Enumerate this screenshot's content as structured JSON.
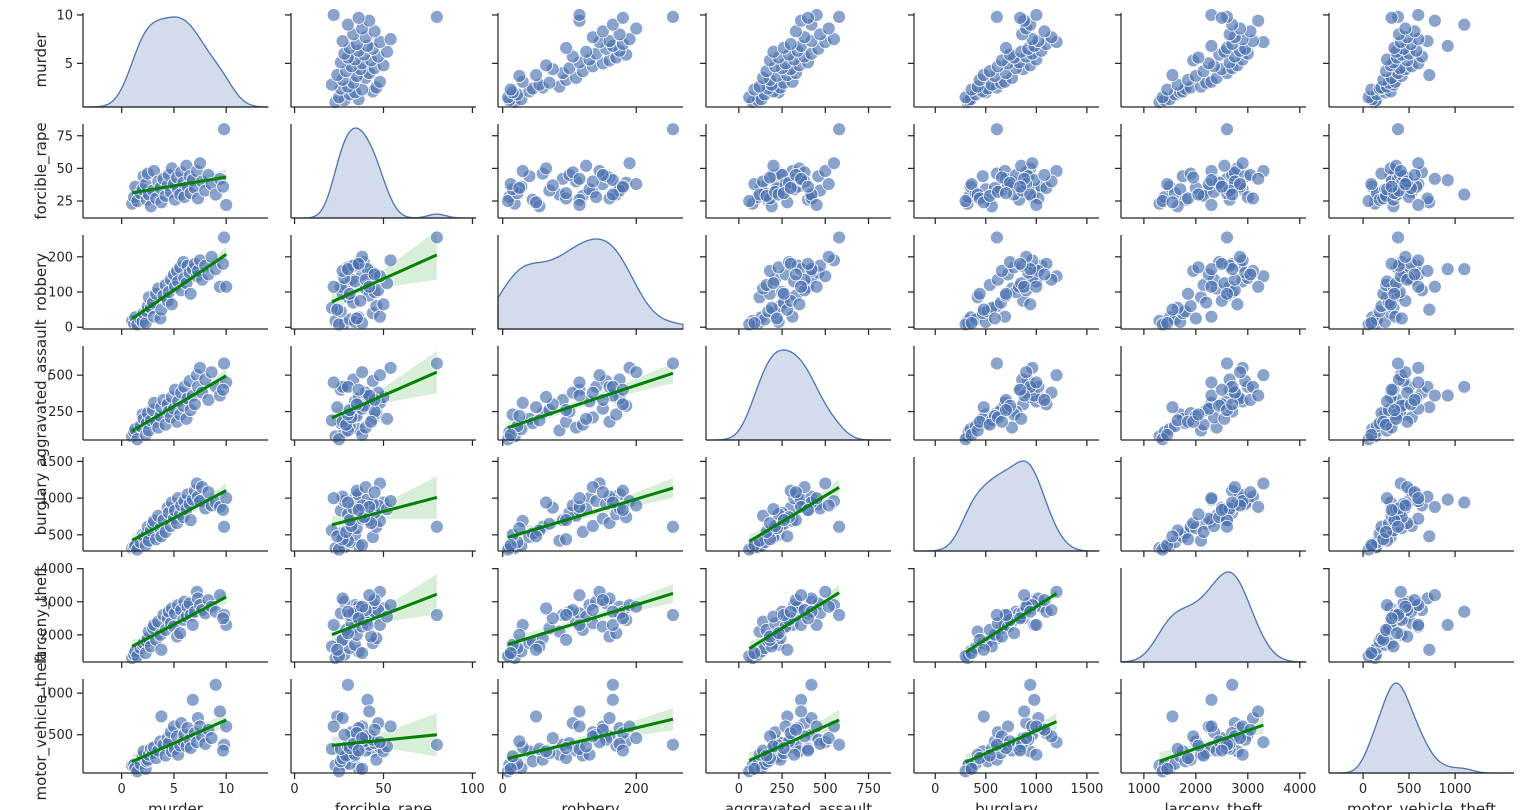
{
  "chart_data": {
    "type": "pairplot",
    "title": "",
    "variables": [
      "murder",
      "forcible_rape",
      "robbery",
      "aggravated_assault",
      "burglary",
      "larceny_theft",
      "motor_vehicle_theft"
    ],
    "axis_ranges": {
      "murder": [
        -3.7,
        14.0
      ],
      "forcible_rape": [
        -2,
        102
      ],
      "robbery": [
        -7,
        270
      ],
      "aggravated_assault": [
        -190,
        880
      ],
      "burglary": [
        -210,
        1620
      ],
      "larceny_theft": [
        560,
        4120
      ],
      "motor_vehicle_theft": [
        -370,
        1640
      ]
    },
    "x_ticks": {
      "murder": [
        0,
        5,
        10
      ],
      "forcible_rape": [
        0,
        50,
        100
      ],
      "robbery": [
        0,
        200
      ],
      "aggravated_assault": [
        0,
        250,
        500,
        750
      ],
      "burglary": [
        0,
        500,
        1000,
        1500
      ],
      "larceny_theft": [
        1000,
        2000,
        3000,
        4000
      ],
      "motor_vehicle_theft": [
        0,
        500,
        1000
      ]
    },
    "y_ticks": {
      "murder": [
        5,
        10
      ],
      "forcible_rape": [
        25,
        50,
        75
      ],
      "robbery": [
        0,
        100,
        200
      ],
      "aggravated_assault": [
        250,
        500
      ],
      "burglary": [
        500,
        1000,
        1500
      ],
      "larceny_theft": [
        2000,
        3000,
        4000
      ],
      "motor_vehicle_theft": [
        500,
        1000
      ]
    },
    "y_view_ranges": {
      "murder": [
        0.5,
        10.2
      ],
      "forcible_rape": [
        12,
        84
      ],
      "robbery": [
        -5,
        262
      ],
      "aggravated_assault": [
        55,
        700
      ],
      "burglary": [
        280,
        1560
      ],
      "larceny_theft": [
        1180,
        4020
      ],
      "motor_vehicle_theft": [
        40,
        1170
      ]
    },
    "diagonal": "kde",
    "lower": "scatter with linear regression line and 95% confidence band (green)",
    "upper": "scatter",
    "regression_line_color": "#008000",
    "point_color": "#4c72b0",
    "samples": [
      [
        1.0,
        23,
        18,
        80,
        320,
        1300,
        130
      ],
      [
        1.2,
        28,
        10,
        110,
        330,
        1400,
        140
      ],
      [
        1.3,
        36,
        28,
        130,
        350,
        1500,
        100
      ],
      [
        1.5,
        25,
        8,
        60,
        300,
        1360,
        60
      ],
      [
        1.8,
        31,
        22,
        150,
        400,
        1600,
        150
      ],
      [
        2.0,
        34,
        15,
        230,
        500,
        1700,
        240
      ],
      [
        2.1,
        44,
        40,
        200,
        470,
        1750,
        300
      ],
      [
        2.3,
        38,
        12,
        90,
        360,
        1450,
        90
      ],
      [
        2.4,
        26,
        45,
        170,
        520,
        1800,
        180
      ],
      [
        2.5,
        46,
        60,
        240,
        610,
        1900,
        200
      ],
      [
        2.6,
        30,
        85,
        120,
        420,
        2100,
        260
      ],
      [
        2.8,
        21,
        55,
        190,
        560,
        1650,
        330
      ],
      [
        3.0,
        33,
        70,
        260,
        650,
        2200,
        280
      ],
      [
        3.1,
        48,
        30,
        310,
        690,
        2300,
        350
      ],
      [
        3.3,
        27,
        95,
        180,
        440,
        1850,
        220
      ],
      [
        3.5,
        40,
        110,
        140,
        760,
        2400,
        310
      ],
      [
        3.7,
        35,
        25,
        220,
        590,
        2000,
        420
      ],
      [
        3.8,
        24,
        50,
        280,
        480,
        1550,
        720
      ],
      [
        4.0,
        42,
        90,
        330,
        700,
        2600,
        380
      ],
      [
        4.2,
        29,
        120,
        160,
        540,
        2150,
        250
      ],
      [
        4.4,
        37,
        75,
        300,
        870,
        2500,
        460
      ],
      [
        4.5,
        45,
        100,
        250,
        800,
        2700,
        400
      ],
      [
        4.7,
        32,
        135,
        210,
        620,
        2350,
        530
      ],
      [
        4.8,
        50,
        65,
        350,
        940,
        2800,
        300
      ],
      [
        5.0,
        38,
        150,
        270,
        720,
        2250,
        600
      ],
      [
        5.1,
        26,
        115,
        400,
        830,
        2650,
        330
      ],
      [
        5.3,
        43,
        160,
        180,
        660,
        1950,
        480
      ],
      [
        5.4,
        34,
        130,
        320,
        1000,
        2900,
        260
      ],
      [
        5.6,
        30,
        170,
        230,
        780,
        2050,
        370
      ],
      [
        5.7,
        47,
        105,
        380,
        900,
        2750,
        640
      ],
      [
        5.9,
        39,
        185,
        290,
        740,
        2450,
        420
      ],
      [
        6.0,
        28,
        140,
        420,
        960,
        3000,
        500
      ],
      [
        6.2,
        52,
        125,
        200,
        850,
        2550,
        360
      ],
      [
        6.3,
        36,
        175,
        340,
        1050,
        2850,
        580
      ],
      [
        6.5,
        44,
        155,
        460,
        920,
        2950,
        440
      ],
      [
        6.6,
        31,
        95,
        260,
        700,
        2600,
        340
      ],
      [
        6.8,
        41,
        165,
        360,
        980,
        2300,
        920
      ],
      [
        7.0,
        35,
        180,
        300,
        1100,
        2700,
        520
      ],
      [
        7.2,
        48,
        145,
        500,
        1200,
        3300,
        410
      ],
      [
        7.3,
        27,
        160,
        420,
        1020,
        3100,
        700
      ],
      [
        7.5,
        54,
        190,
        550,
        960,
        2900,
        600
      ],
      [
        7.7,
        40,
        135,
        380,
        1150,
        2750,
        480
      ],
      [
        8.0,
        33,
        175,
        470,
        860,
        2650,
        390
      ],
      [
        8.3,
        45,
        150,
        330,
        1080,
        3050,
        560
      ],
      [
        8.6,
        38,
        200,
        520,
        900,
        2850,
        460
      ],
      [
        9.0,
        30,
        165,
        420,
        940,
        2700,
        1100
      ],
      [
        9.4,
        42,
        115,
        360,
        880,
        3200,
        780
      ],
      [
        9.8,
        80,
        255,
        580,
        610,
        2600,
        380
      ],
      [
        10.0,
        22,
        115,
        450,
        1000,
        2300,
        600
      ],
      [
        9.7,
        36,
        180,
        400,
        840,
        2500,
        310
      ]
    ]
  }
}
